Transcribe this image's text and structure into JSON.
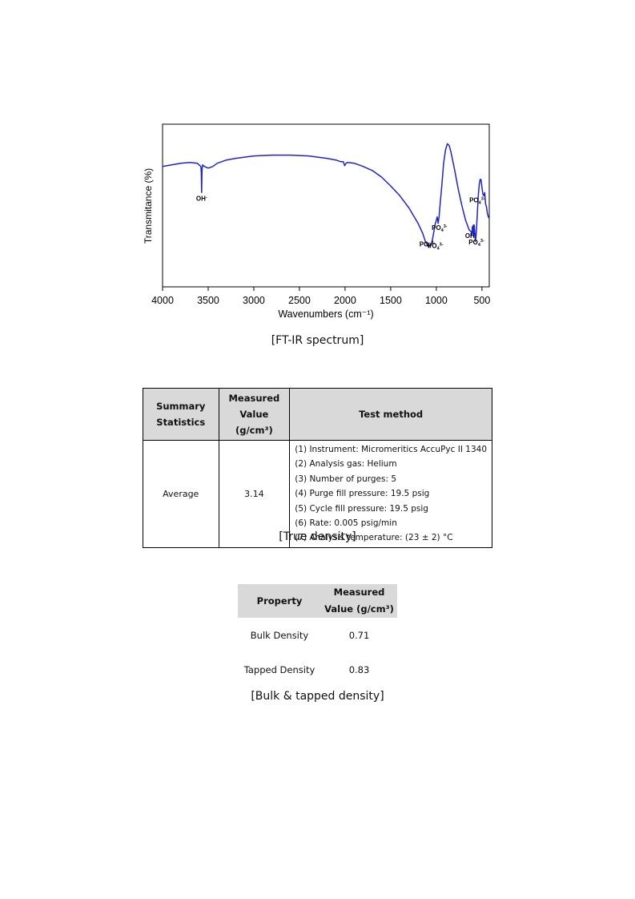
{
  "chart_data": {
    "type": "line",
    "xlabel": "Wavenumbers (cm⁻¹)",
    "ylabel": "Transmitance (%)",
    "xlim": [
      4000,
      420
    ],
    "ylim": [
      0,
      100
    ],
    "x_ticks": [
      4000,
      3500,
      3000,
      2500,
      2000,
      1500,
      1000,
      500
    ],
    "grid": false,
    "series": [
      {
        "points": [
          [
            4000,
            74
          ],
          [
            3900,
            75
          ],
          [
            3800,
            76
          ],
          [
            3700,
            76.5
          ],
          [
            3620,
            76
          ],
          [
            3600,
            75
          ],
          [
            3580,
            74
          ],
          [
            3575,
            70
          ],
          [
            3572,
            58
          ],
          [
            3570,
            64
          ],
          [
            3567,
            72
          ],
          [
            3560,
            75
          ],
          [
            3540,
            74
          ],
          [
            3500,
            73
          ],
          [
            3450,
            74
          ],
          [
            3400,
            76
          ],
          [
            3300,
            78
          ],
          [
            3200,
            79
          ],
          [
            3000,
            80.5
          ],
          [
            2800,
            81
          ],
          [
            2600,
            81
          ],
          [
            2400,
            80.5
          ],
          [
            2200,
            79
          ],
          [
            2100,
            78
          ],
          [
            2050,
            77
          ],
          [
            2020,
            77
          ],
          [
            2005,
            74.5
          ],
          [
            1990,
            76
          ],
          [
            1970,
            76.5
          ],
          [
            1900,
            76
          ],
          [
            1800,
            74
          ],
          [
            1700,
            71.5
          ],
          [
            1600,
            67.5
          ],
          [
            1500,
            62
          ],
          [
            1400,
            56
          ],
          [
            1300,
            48.5
          ],
          [
            1200,
            39
          ],
          [
            1150,
            33
          ],
          [
            1120,
            28
          ],
          [
            1090,
            25
          ],
          [
            1070,
            25.5
          ],
          [
            1050,
            27
          ],
          [
            1030,
            33
          ],
          [
            1015,
            38
          ],
          [
            1000,
            41
          ],
          [
            990,
            43
          ],
          [
            980,
            39
          ],
          [
            970,
            43
          ],
          [
            960,
            50
          ],
          [
            940,
            62
          ],
          [
            920,
            76
          ],
          [
            900,
            84
          ],
          [
            880,
            88
          ],
          [
            860,
            87
          ],
          [
            840,
            83
          ],
          [
            800,
            72
          ],
          [
            760,
            60
          ],
          [
            720,
            50
          ],
          [
            680,
            41
          ],
          [
            640,
            35
          ],
          [
            620,
            34
          ],
          [
            610,
            32
          ],
          [
            605,
            37
          ],
          [
            600,
            33
          ],
          [
            595,
            38
          ],
          [
            590,
            32
          ],
          [
            585,
            38
          ],
          [
            578,
            33
          ],
          [
            572,
            28
          ],
          [
            566,
            31
          ],
          [
            560,
            35
          ],
          [
            550,
            46
          ],
          [
            540,
            56
          ],
          [
            530,
            63
          ],
          [
            520,
            66
          ],
          [
            510,
            66
          ],
          [
            500,
            61
          ],
          [
            490,
            57
          ],
          [
            480,
            56
          ],
          [
            470,
            58
          ],
          [
            460,
            51
          ],
          [
            450,
            49
          ],
          [
            440,
            45
          ],
          [
            430,
            43
          ],
          [
            420,
            42
          ]
        ]
      }
    ],
    "annotations": [
      {
        "ion": "OH",
        "charge": "-",
        "x": 3572,
        "y": 53
      },
      {
        "ion": "PO",
        "sub": "4",
        "charge": "3-",
        "x": 1100,
        "y": 25
      },
      {
        "ion": "PO",
        "sub": "4",
        "charge": "3-",
        "x": 1010,
        "y": 24
      },
      {
        "ion": "PO",
        "sub": "4",
        "charge": "3-",
        "x": 965,
        "y": 35
      },
      {
        "ion": "OH",
        "charge": "",
        "x": 632,
        "y": 30
      },
      {
        "ion": "PO",
        "sub": "4",
        "charge": "3-",
        "x": 560,
        "y": 26
      },
      {
        "ion": "PO",
        "sub": "4",
        "charge": "3-",
        "x": 553,
        "y": 52
      }
    ]
  },
  "ftir_caption": "[FT-IR spectrum]",
  "true_density": {
    "headers": {
      "summary_line1": "Summary",
      "summary_line2": "Statistics",
      "measured_line1": "Measured",
      "measured_line2": "Value (g/cm³)",
      "method": "Test method"
    },
    "row_label": "Average",
    "value": "3.14",
    "methods": [
      "(1) Instrument: Micromeritics AccuPyc II 1340",
      "(2) Analysis gas: Helium",
      "(3) Number of purges: 5",
      "(4) Purge fill pressure: 19.5 psig",
      "(5) Cycle fill pressure: 19.5 psig",
      "(6) Rate: 0.005 psig/min",
      "(7) Analysis temperature: (23 ± 2) °C"
    ]
  },
  "true_density_caption": "[True density]",
  "bulk_density": {
    "headers": {
      "property": "Property",
      "measured_line1": "Measured",
      "measured_line2": "Value (g/cm³)"
    },
    "rows": [
      {
        "property": "Bulk Density",
        "value": "0.71"
      },
      {
        "property": "Tapped Density",
        "value": "0.83"
      }
    ]
  },
  "bulk_caption": "[Bulk & tapped density]"
}
